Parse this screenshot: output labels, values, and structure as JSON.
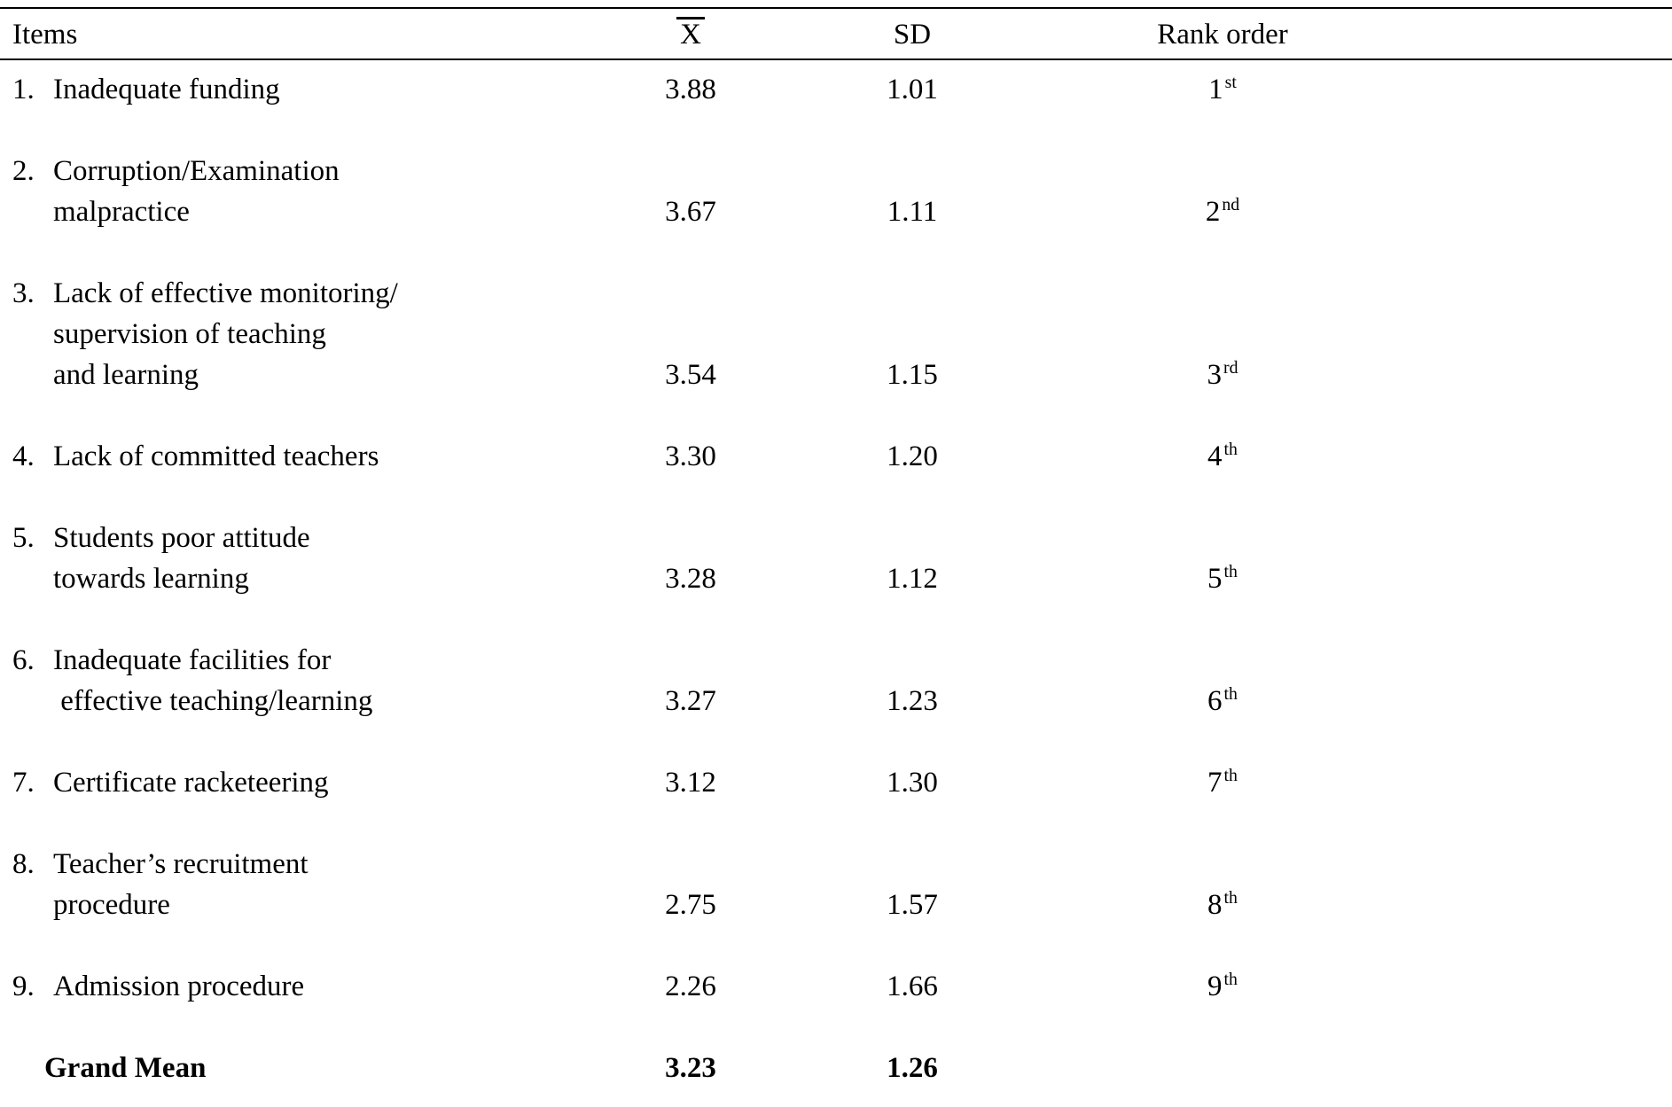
{
  "page": {
    "background": "#ffffff",
    "text_color": "#000000"
  },
  "table": {
    "header": {
      "items": "Items",
      "mean": "X",
      "sd": "SD",
      "rank": "Rank order"
    },
    "rows": [
      {
        "num": "1.",
        "lines": [
          "Inadequate funding"
        ],
        "mean": "3.88",
        "sd": "1.01",
        "rank": "1",
        "rank_sup": "st"
      },
      {
        "num": "2.",
        "lines": [
          "Corruption/Examination",
          "malpractice"
        ],
        "mean": "3.67",
        "sd": "1.11",
        "rank": "2",
        "rank_sup": "nd"
      },
      {
        "num": "3.",
        "lines": [
          "Lack of effective monitoring/",
          "supervision of teaching",
          "and learning"
        ],
        "mean": "3.54",
        "sd": "1.15",
        "rank": "3",
        "rank_sup": "rd"
      },
      {
        "num": "4.",
        "lines": [
          "Lack of committed teachers"
        ],
        "mean": "3.30",
        "sd": "1.20",
        "rank": "4",
        "rank_sup": "th"
      },
      {
        "num": "5.",
        "lines": [
          "Students poor attitude",
          "towards learning"
        ],
        "mean": "3.28",
        "sd": "1.12",
        "rank": "5",
        "rank_sup": "th"
      },
      {
        "num": "6.",
        "lines": [
          "Inadequate facilities for",
          " effective teaching/learning"
        ],
        "mean": "3.27",
        "sd": "1.23",
        "rank": "6",
        "rank_sup": "th"
      },
      {
        "num": "7.",
        "lines": [
          "Certificate racketeering"
        ],
        "mean": "3.12",
        "sd": "1.30",
        "rank": "7",
        "rank_sup": "th"
      },
      {
        "num": "8.",
        "lines": [
          "Teacher’s recruitment",
          "procedure"
        ],
        "mean": "2.75",
        "sd": "1.57",
        "rank": "8",
        "rank_sup": "th"
      },
      {
        "num": "9.",
        "lines": [
          "Admission procedure"
        ],
        "mean": "2.26",
        "sd": "1.66",
        "rank": "9",
        "rank_sup": "th"
      }
    ],
    "footer": {
      "label": "Grand Mean",
      "mean": "3.23",
      "sd": "1.26"
    }
  },
  "chart_data": {
    "type": "table",
    "columns": [
      "Items",
      "X (mean)",
      "SD",
      "Rank order"
    ],
    "rows": [
      [
        "1. Inadequate funding",
        3.88,
        1.01,
        "1st"
      ],
      [
        "2. Corruption/Examination malpractice",
        3.67,
        1.11,
        "2nd"
      ],
      [
        "3. Lack of effective monitoring/ supervision of teaching and learning",
        3.54,
        1.15,
        "3rd"
      ],
      [
        "4. Lack of committed teachers",
        3.3,
        1.2,
        "4th"
      ],
      [
        "5. Students poor attitude towards learning",
        3.28,
        1.12,
        "5th"
      ],
      [
        "6. Inadequate facilities for effective teaching/learning",
        3.27,
        1.23,
        "6th"
      ],
      [
        "7. Certificate racketeering",
        3.12,
        1.3,
        "7th"
      ],
      [
        "8. Teacher’s recruitment procedure",
        2.75,
        1.57,
        "8th"
      ],
      [
        "9. Admission procedure",
        2.26,
        1.66,
        "9th"
      ],
      [
        "Grand Mean",
        3.23,
        1.26,
        ""
      ]
    ]
  }
}
